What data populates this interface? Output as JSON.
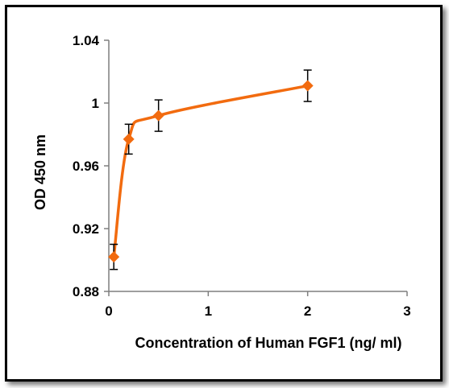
{
  "chart_data": {
    "type": "line",
    "title": "",
    "xlabel": "Concentration of Human FGF1 (ng/ ml)",
    "ylabel": "OD 450 nm",
    "xlim": [
      0,
      3
    ],
    "ylim": [
      0.88,
      1.04
    ],
    "x_ticks": [
      0,
      1,
      2,
      3
    ],
    "y_ticks": [
      0.88,
      0.92,
      0.96,
      1.0,
      1.04
    ],
    "x_tick_labels": [
      "0",
      "1",
      "2",
      "3"
    ],
    "y_tick_labels": [
      "0.88",
      "0.92",
      "0.96",
      "1",
      "1.04"
    ],
    "grid": false,
    "legend": "none",
    "series": [
      {
        "color": "#f26b0f",
        "marker": "diamond",
        "smooth": true,
        "x": [
          0.05,
          0.2,
          0.5,
          2.0
        ],
        "y": [
          0.902,
          0.977,
          0.992,
          1.011
        ],
        "error": [
          0.008,
          0.0095,
          0.01,
          0.01
        ]
      }
    ]
  }
}
